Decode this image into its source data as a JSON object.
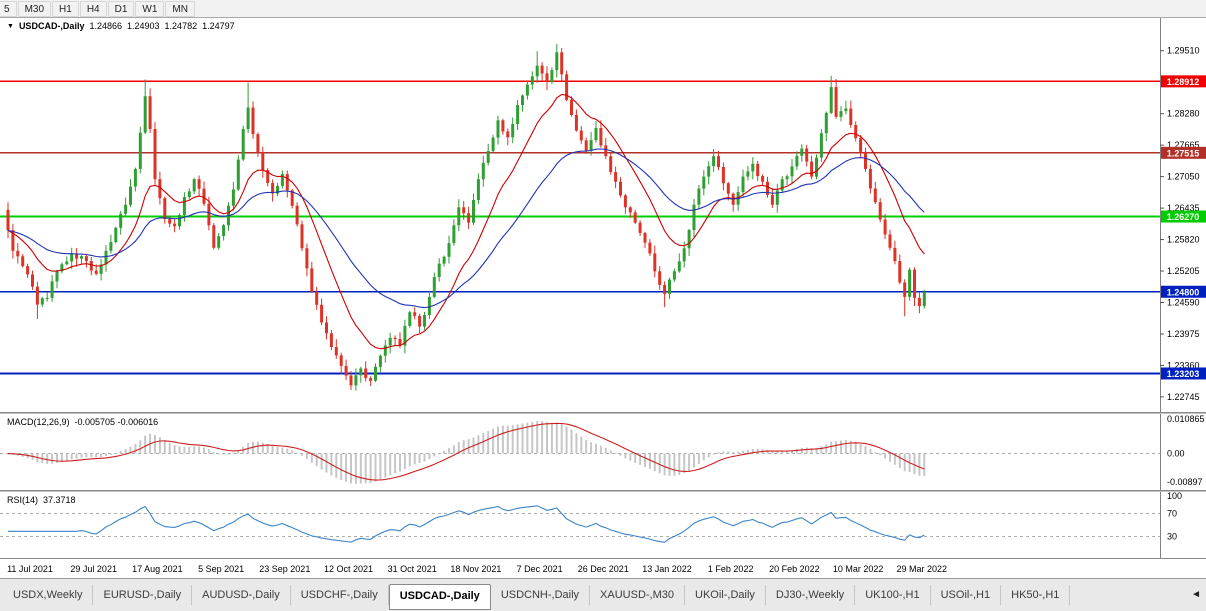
{
  "toolbar": {
    "timeframe_buttons": [
      "5",
      "M30",
      "H1",
      "H4",
      "D1",
      "W1",
      "MN"
    ]
  },
  "chart_header": {
    "dropdown_marker": "▼",
    "symbol": "USDCAD-,Daily",
    "ohlc": {
      "open": "1.24866",
      "high": "1.24903",
      "low": "1.24782",
      "close": "1.24797"
    }
  },
  "chart_data": {
    "type": "candlestick",
    "title": "USDCAD-,Daily",
    "colors": {
      "candle_up": "#2f9e33",
      "candle_down": "#dd3226",
      "macd_bar": "#c6c6c6",
      "macd_signal": "#cc2020",
      "dash": "#ababab",
      "axis_text": "#000000",
      "separator": "#808080"
    },
    "x_labels": [
      "11 Jul 2021",
      "29 Jul 2021",
      "17 Aug 2021",
      "5 Sep 2021",
      "23 Sep 2021",
      "12 Oct 2021",
      "31 Oct 2021",
      "18 Nov 2021",
      "7 Dec 2021",
      "26 Dec 2021",
      "13 Jan 2022",
      "1 Feb 2022",
      "20 Feb 2022",
      "10 Mar 2022",
      "29 Mar 2022"
    ],
    "y_axis": {
      "min": 1.2245,
      "max": 1.3015,
      "ticks": [
        1.2951,
        1.28895,
        1.2828,
        1.27665,
        1.2705,
        1.26435,
        1.2582,
        1.25205,
        1.2459,
        1.23975,
        1.2336,
        1.22745
      ]
    },
    "horizontal_levels": [
      {
        "price": 1.28912,
        "label": "1.28912",
        "color": "#f00000",
        "width": 1.6
      },
      {
        "price": 1.27515,
        "label": "1.27515",
        "color": "#b23028",
        "width": 1.4
      },
      {
        "price": 1.2627,
        "label": "1.26270",
        "color": "#00cc00",
        "width": 2
      },
      {
        "price": 1.248,
        "label": "1.24800",
        "color": "#0020c0",
        "width": 1.6
      },
      {
        "price": 1.23203,
        "label": "1.23203",
        "color": "#0020c0",
        "width": 1.6
      }
    ],
    "overlays": [
      {
        "name": "ma-fast-red",
        "color": "#cc0000",
        "ema_period": 13
      },
      {
        "name": "ma-slow-blue",
        "color": "#2234b4",
        "ema_period": 34
      }
    ],
    "candles": {
      "count": 188,
      "anchors": [
        [
          0,
          1.26
        ],
        [
          1,
          1.256
        ],
        [
          3,
          1.253
        ],
        [
          5,
          1.249
        ],
        [
          6,
          1.2455
        ],
        [
          8,
          1.2468
        ],
        [
          10,
          1.252
        ],
        [
          13,
          1.2555
        ],
        [
          16,
          1.254
        ],
        [
          18,
          1.2515
        ],
        [
          20,
          1.256
        ],
        [
          22,
          1.2605
        ],
        [
          24,
          1.265
        ],
        [
          26,
          1.272
        ],
        [
          28,
          1.2862
        ],
        [
          29,
          1.2798
        ],
        [
          30,
          1.27
        ],
        [
          32,
          1.2622
        ],
        [
          34,
          1.2608
        ],
        [
          36,
          1.2665
        ],
        [
          38,
          1.27
        ],
        [
          40,
          1.2652
        ],
        [
          42,
          1.2566
        ],
        [
          44,
          1.261
        ],
        [
          46,
          1.268
        ],
        [
          48,
          1.2798
        ],
        [
          49,
          1.284
        ],
        [
          50,
          1.2788
        ],
        [
          52,
          1.2718
        ],
        [
          54,
          1.2672
        ],
        [
          56,
          1.271
        ],
        [
          58,
          1.2648
        ],
        [
          60,
          1.2565
        ],
        [
          62,
          1.248
        ],
        [
          64,
          1.242
        ],
        [
          66,
          1.2372
        ],
        [
          68,
          1.2335
        ],
        [
          70,
          1.2297
        ],
        [
          72,
          1.233
        ],
        [
          74,
          1.2306
        ],
        [
          76,
          1.2355
        ],
        [
          78,
          1.239
        ],
        [
          80,
          1.2375
        ],
        [
          82,
          1.244
        ],
        [
          84,
          1.2412
        ],
        [
          86,
          1.247
        ],
        [
          88,
          1.2535
        ],
        [
          90,
          1.2575
        ],
        [
          92,
          1.2645
        ],
        [
          94,
          1.2615
        ],
        [
          96,
          1.27
        ],
        [
          98,
          1.2755
        ],
        [
          100,
          1.2815
        ],
        [
          102,
          1.2782
        ],
        [
          104,
          1.2845
        ],
        [
          106,
          1.2885
        ],
        [
          108,
          1.2922
        ],
        [
          110,
          1.289
        ],
        [
          112,
          1.2948
        ],
        [
          113,
          1.2905
        ],
        [
          114,
          1.2855
        ],
        [
          116,
          1.2795
        ],
        [
          118,
          1.2756
        ],
        [
          120,
          1.28
        ],
        [
          122,
          1.2745
        ],
        [
          124,
          1.2695
        ],
        [
          126,
          1.2645
        ],
        [
          128,
          1.2615
        ],
        [
          130,
          1.2576
        ],
        [
          132,
          1.252
        ],
        [
          134,
          1.2476
        ],
        [
          136,
          1.252
        ],
        [
          138,
          1.2565
        ],
        [
          140,
          1.265
        ],
        [
          142,
          1.2705
        ],
        [
          144,
          1.2745
        ],
        [
          146,
          1.2692
        ],
        [
          148,
          1.265
        ],
        [
          150,
          1.2705
        ],
        [
          152,
          1.273
        ],
        [
          154,
          1.2695
        ],
        [
          156,
          1.265
        ],
        [
          158,
          1.27
        ],
        [
          160,
          1.2725
        ],
        [
          162,
          1.276
        ],
        [
          164,
          1.2705
        ],
        [
          166,
          1.279
        ],
        [
          168,
          1.288
        ],
        [
          169,
          1.2822
        ],
        [
          171,
          1.2838
        ],
        [
          173,
          1.278
        ],
        [
          175,
          1.272
        ],
        [
          177,
          1.2655
        ],
        [
          179,
          1.2592
        ],
        [
          181,
          1.254
        ],
        [
          183,
          1.247
        ],
        [
          184,
          1.2523
        ],
        [
          185,
          1.2468
        ],
        [
          186,
          1.2452
        ],
        [
          187,
          1.24797
        ]
      ],
      "wicks": [
        {
          "i": 6,
          "low": 1.2427
        },
        {
          "i": 28,
          "high": 1.2895
        },
        {
          "i": 49,
          "high": 1.2889
        },
        {
          "i": 70,
          "low": 1.2288
        },
        {
          "i": 108,
          "high": 1.295
        },
        {
          "i": 112,
          "high": 1.2964
        },
        {
          "i": 134,
          "low": 1.245
        },
        {
          "i": 168,
          "high": 1.2902
        },
        {
          "i": 183,
          "low": 1.2432
        },
        {
          "i": 186,
          "low": 1.2438
        }
      ]
    },
    "macd": {
      "name": "MACD(12,26,9)",
      "display_values": "-0.005705 -0.006016",
      "params": {
        "fast": 12,
        "slow": 26,
        "signal": 9
      },
      "range": {
        "min": -0.0115,
        "max": 0.0125
      },
      "axis_labels": [
        {
          "value": 0.010865,
          "text": "0.010865"
        },
        {
          "value": 0,
          "text": "0.00"
        },
        {
          "value": -0.00897,
          "text": "-0.00897"
        }
      ]
    },
    "rsi": {
      "name": "RSI(14)",
      "display_value": "37.3718",
      "period": 14,
      "line_color": "#3d85c8",
      "levels": [
        70,
        30
      ],
      "axis_labels": [
        {
          "value": 100,
          "text": "100"
        },
        {
          "value": 70,
          "text": "70"
        },
        {
          "value": 30,
          "text": "30"
        }
      ]
    }
  },
  "tabs": {
    "items": [
      "USDX,Weekly",
      "EURUSD-,Daily",
      "AUDUSD-,Daily",
      "USDCHF-,Daily",
      "USDCAD-,Daily",
      "USDCNH-,Daily",
      "XAUUSD-,M30",
      "UKOil-,Daily",
      "DJ30-,Weekly",
      "UK100-,H1",
      "USOil-,H1",
      "HK50-,H1"
    ],
    "active_index": 4,
    "scroll_arrow": "◄"
  }
}
